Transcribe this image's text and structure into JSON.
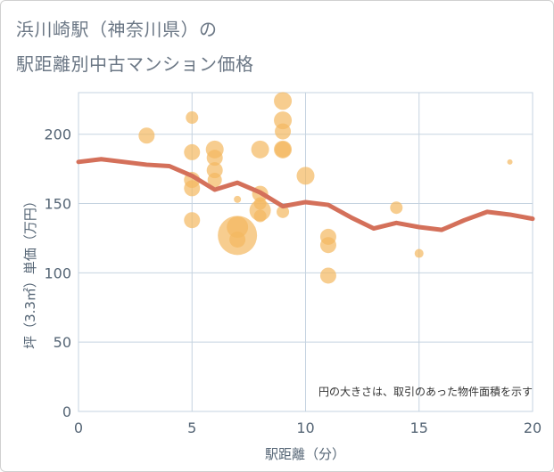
{
  "header": {
    "title_line1": "浜川崎駅（神奈川県）の",
    "title_line2": "駅距離別中古マンション価格"
  },
  "chart_data": {
    "type": "scatter",
    "xlabel": "駅距離（分）",
    "ylabel": "坪（3.3㎡）単価（万円）",
    "xlim": [
      0,
      20
    ],
    "ylim": [
      0,
      230
    ],
    "x_ticks": [
      0,
      5,
      10,
      15,
      20
    ],
    "y_ticks": [
      0,
      50,
      100,
      150,
      200
    ],
    "grid": true,
    "note": "円の大きさは、取引のあった物件面積を示す",
    "colors": {
      "bubble": "#f4b860",
      "line": "#d4705a",
      "grid": "#c5d3e0"
    },
    "bubbles": [
      {
        "x": 3,
        "y": 199,
        "r": 9
      },
      {
        "x": 5,
        "y": 212,
        "r": 7
      },
      {
        "x": 5,
        "y": 187,
        "r": 9
      },
      {
        "x": 5,
        "y": 167,
        "r": 9
      },
      {
        "x": 5,
        "y": 161,
        "r": 9
      },
      {
        "x": 5,
        "y": 138,
        "r": 9
      },
      {
        "x": 6,
        "y": 189,
        "r": 10
      },
      {
        "x": 6,
        "y": 183,
        "r": 9
      },
      {
        "x": 6,
        "y": 174,
        "r": 9
      },
      {
        "x": 6,
        "y": 167,
        "r": 8
      },
      {
        "x": 7,
        "y": 153,
        "r": 4
      },
      {
        "x": 7,
        "y": 133,
        "r": 12
      },
      {
        "x": 7,
        "y": 127,
        "r": 22
      },
      {
        "x": 7,
        "y": 124,
        "r": 9
      },
      {
        "x": 8,
        "y": 189,
        "r": 10
      },
      {
        "x": 8,
        "y": 157,
        "r": 9
      },
      {
        "x": 8,
        "y": 150,
        "r": 7
      },
      {
        "x": 8,
        "y": 145,
        "r": 12
      },
      {
        "x": 8,
        "y": 141,
        "r": 7
      },
      {
        "x": 9,
        "y": 224,
        "r": 10
      },
      {
        "x": 9,
        "y": 210,
        "r": 10
      },
      {
        "x": 9,
        "y": 202,
        "r": 9
      },
      {
        "x": 9,
        "y": 189,
        "r": 10
      },
      {
        "x": 9,
        "y": 189,
        "r": 9
      },
      {
        "x": 9,
        "y": 144,
        "r": 7
      },
      {
        "x": 10,
        "y": 170,
        "r": 10
      },
      {
        "x": 11,
        "y": 126,
        "r": 9
      },
      {
        "x": 11,
        "y": 120,
        "r": 9
      },
      {
        "x": 11,
        "y": 98,
        "r": 9
      },
      {
        "x": 14,
        "y": 147,
        "r": 7
      },
      {
        "x": 15,
        "y": 114,
        "r": 5
      },
      {
        "x": 19,
        "y": 180,
        "r": 3
      }
    ],
    "trend": {
      "x": [
        0,
        1,
        2,
        3,
        4,
        5,
        6,
        7,
        8,
        9,
        10,
        11,
        12,
        13,
        14,
        15,
        16,
        17,
        18,
        19,
        20
      ],
      "y": [
        180,
        182,
        180,
        178,
        177,
        170,
        160,
        165,
        158,
        148,
        151,
        149,
        140,
        132,
        136,
        133,
        131,
        138,
        144,
        142,
        139
      ]
    }
  }
}
